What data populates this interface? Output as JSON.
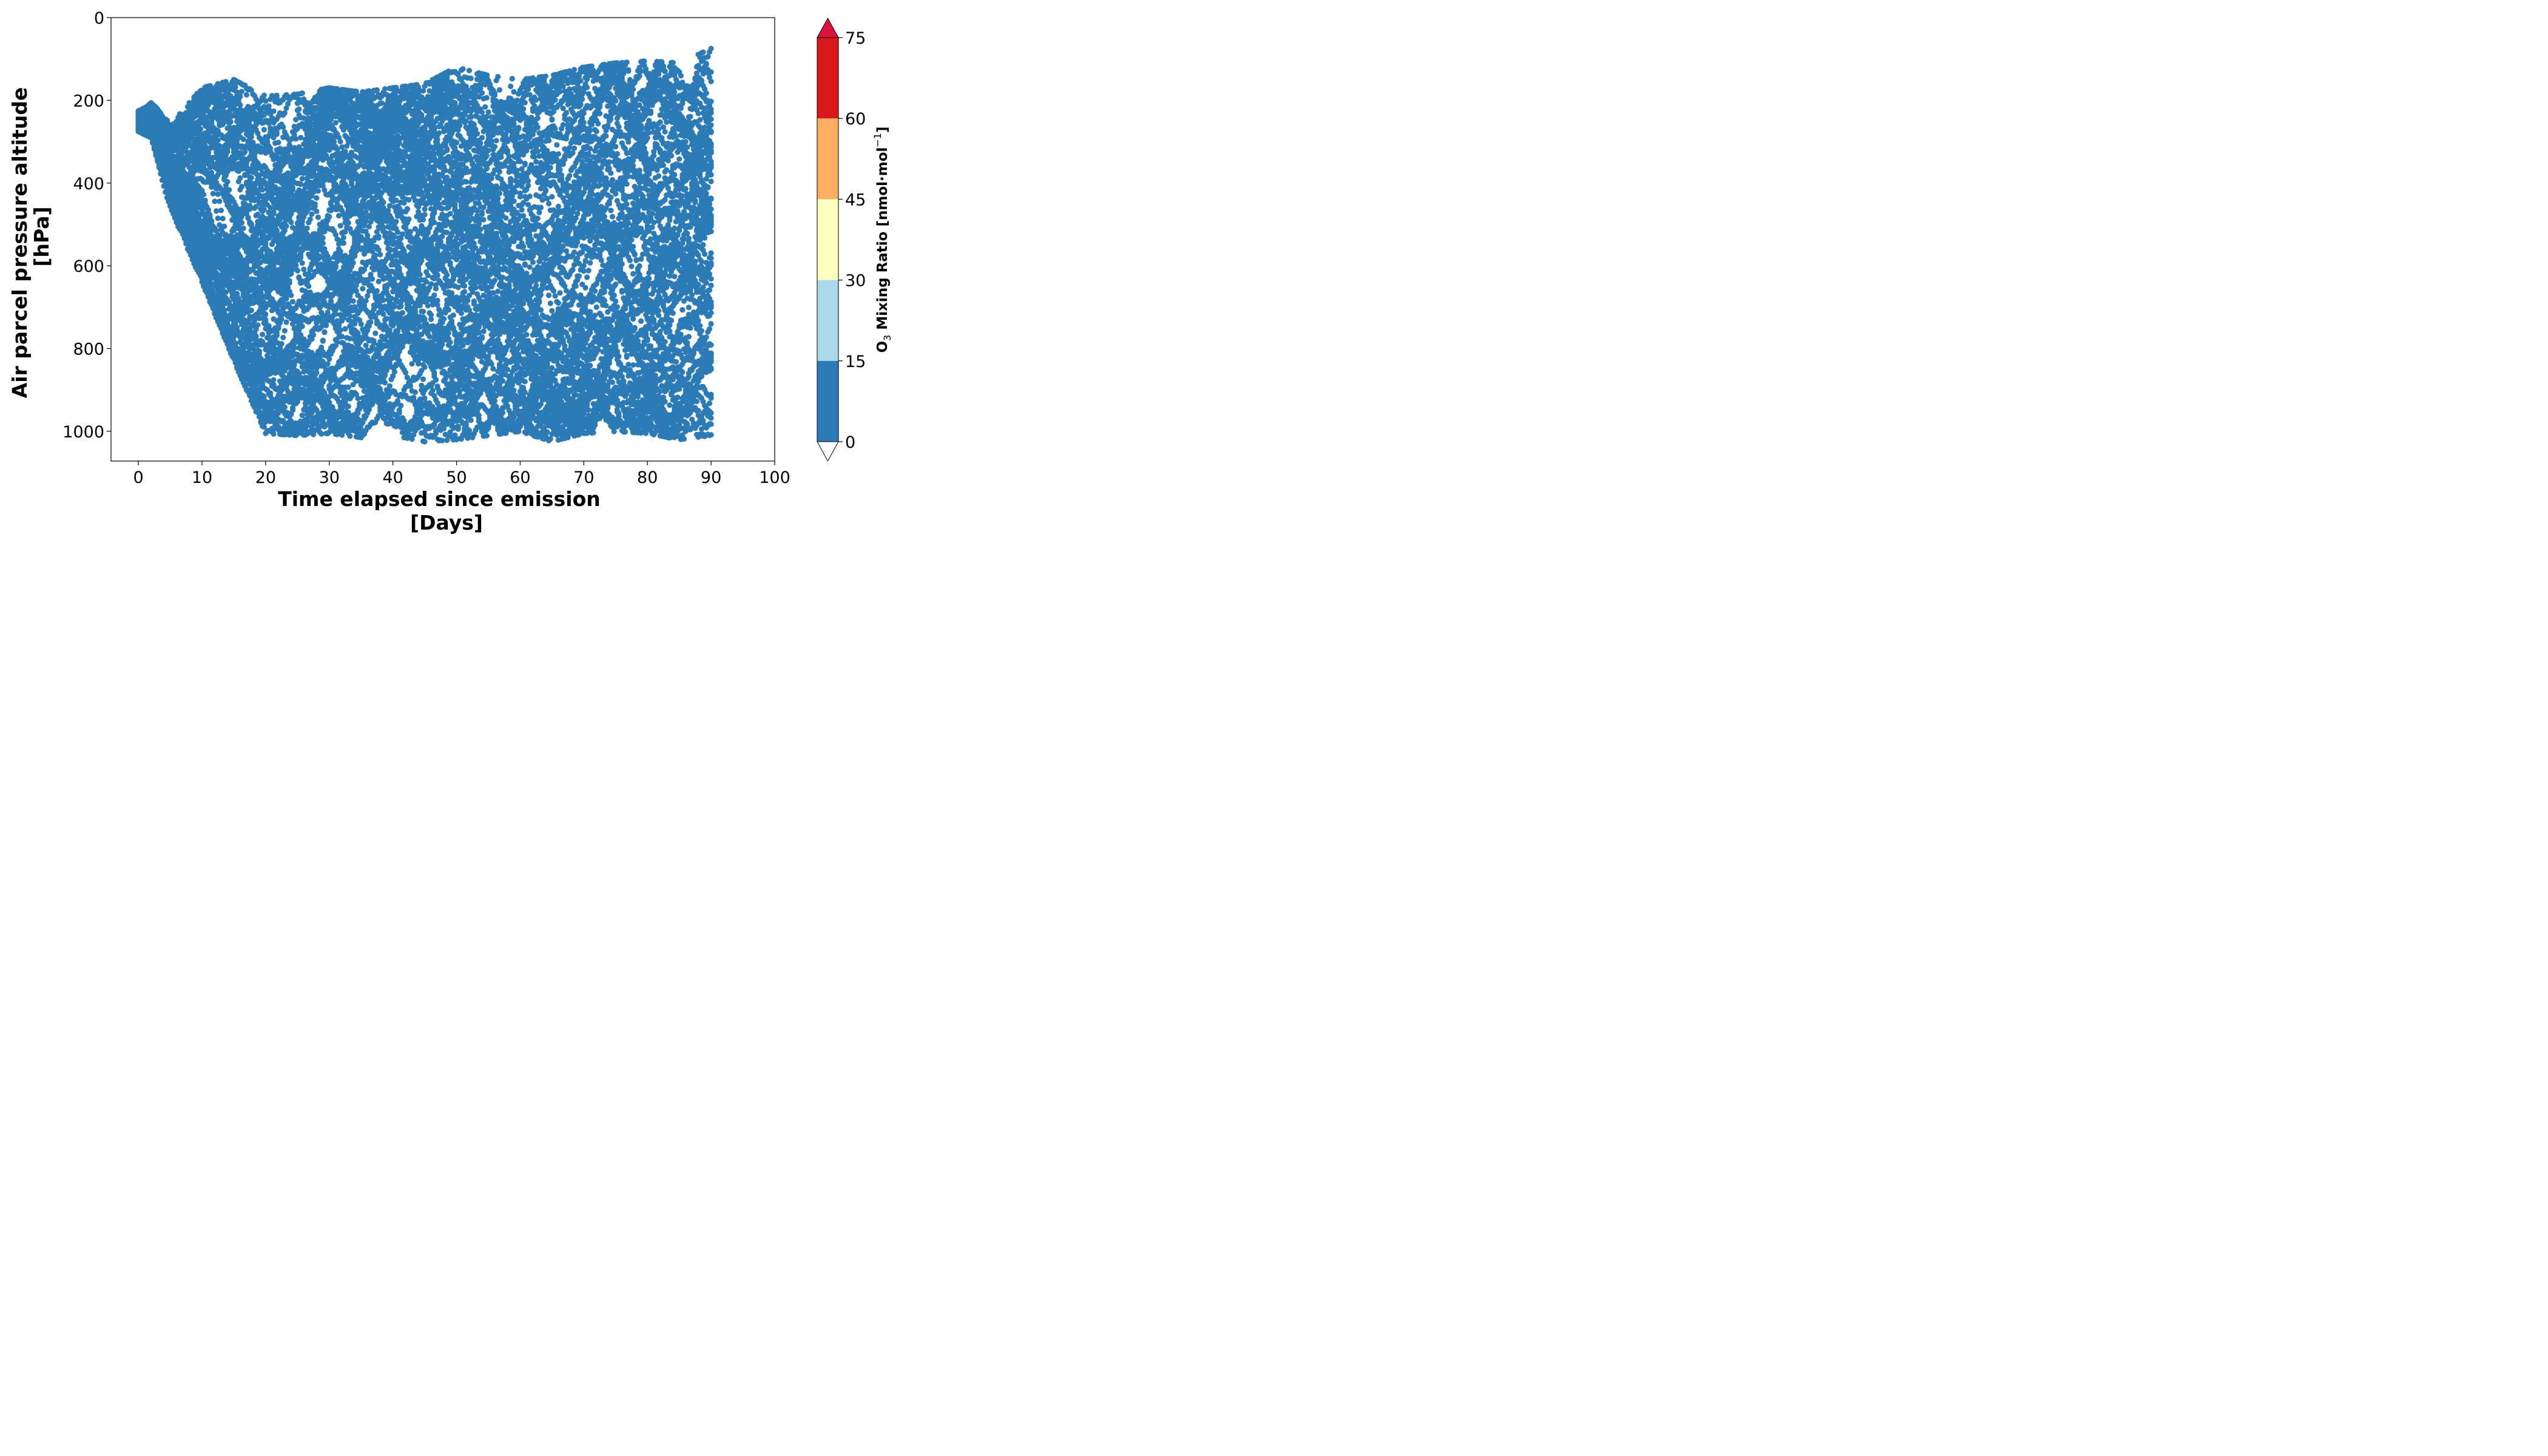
{
  "chart_data": {
    "type": "scatter",
    "xlabel_line1": "Time elapsed since emission",
    "xlabel_line2": "[Days]",
    "ylabel_line1": "Air parcel pressure altitude",
    "ylabel_line2": "[hPa]",
    "xlim": [
      -4.3,
      100
    ],
    "ylim": [
      1072,
      0
    ],
    "xticks": [
      "0",
      "10",
      "20",
      "30",
      "40",
      "50",
      "60",
      "70",
      "80",
      "90",
      "100"
    ],
    "yticks": [
      "0",
      "200",
      "400",
      "600",
      "800",
      "1000"
    ],
    "grid": false,
    "marker_color": "#2c7bb6",
    "trajectory_sample": {
      "description_x": "days",
      "description_y": "hPa",
      "x": [
        0,
        2,
        5,
        10,
        15,
        20,
        25,
        30,
        35,
        40,
        45,
        50,
        55,
        60,
        65,
        70,
        75,
        80,
        85,
        90
      ],
      "y_min": [
        200,
        190,
        260,
        170,
        150,
        190,
        185,
        170,
        180,
        170,
        160,
        120,
        140,
        150,
        140,
        120,
        110,
        105,
        110,
        75
      ],
      "y_max": [
        300,
        310,
        460,
        640,
        830,
        1005,
        1010,
        1005,
        1015,
        1010,
        1025,
        1020,
        1010,
        1000,
        1025,
        1005,
        1000,
        1005,
        1020,
        1010
      ]
    },
    "colorbar": {
      "label_main": "O",
      "label_sub": "3",
      "label_rest": " Mixing Ratio [nmol·mol",
      "label_sup": "−1",
      "label_end": "]",
      "ticks": [
        "0",
        "15",
        "30",
        "45",
        "60",
        "75"
      ],
      "bins": [
        {
          "from": 0,
          "to": 15,
          "color": "#2c7bb6"
        },
        {
          "from": 15,
          "to": 30,
          "color": "#abd9e9"
        },
        {
          "from": 30,
          "to": 45,
          "color": "#ffffbf"
        },
        {
          "from": 45,
          "to": 60,
          "color": "#fdae61"
        },
        {
          "from": 60,
          "to": 75,
          "color": "#d7191c"
        }
      ],
      "over_color": "#dc143c",
      "under_color": "#ffffff",
      "extend": "both"
    }
  }
}
